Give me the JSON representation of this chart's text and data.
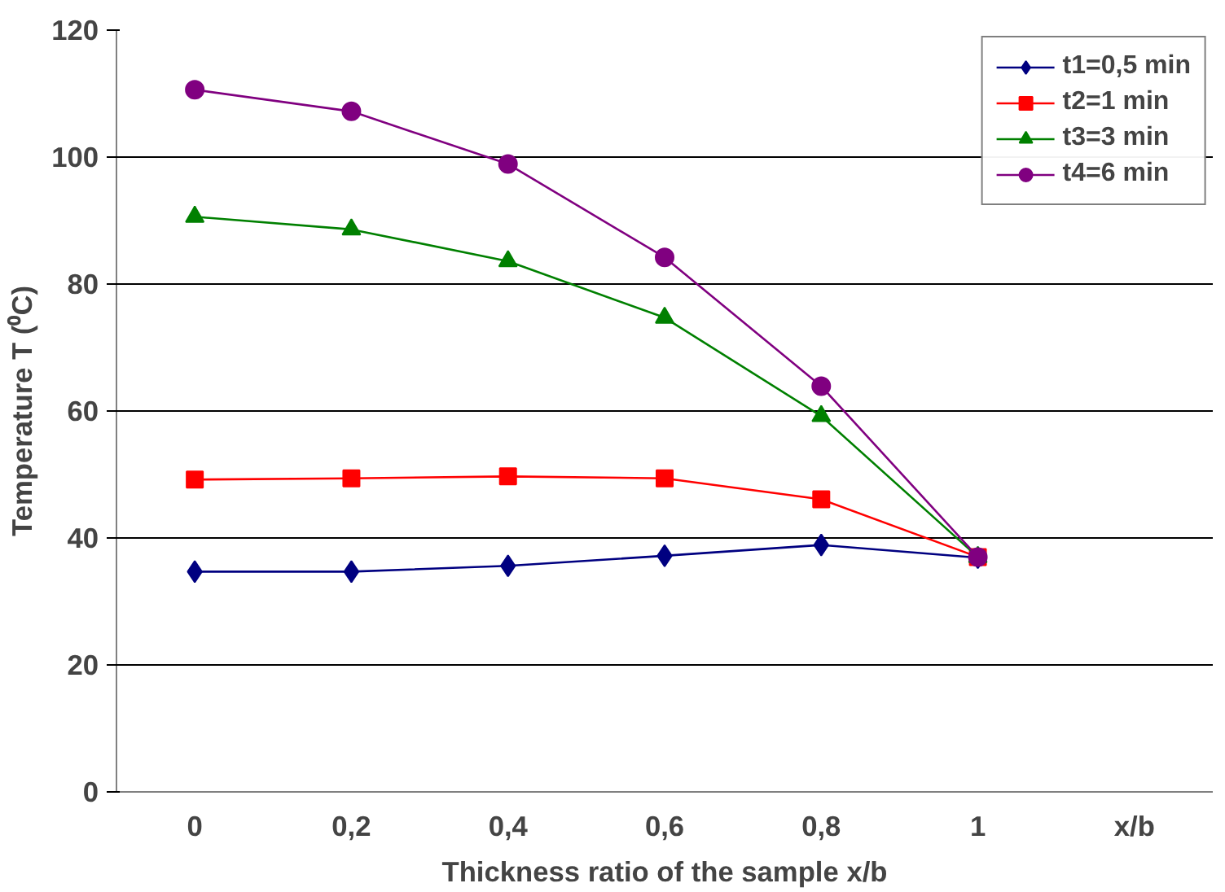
{
  "chart_data": {
    "type": "line",
    "xlabel": "Thickness ratio of the sample x/b",
    "ylabel": "Temperature T (⁰C)",
    "categories": [
      "0",
      "0,2",
      "0,4",
      "0,6",
      "0,8",
      "1",
      "x/b"
    ],
    "ylim": [
      0,
      120
    ],
    "yticks": [
      0,
      20,
      40,
      60,
      80,
      100,
      120
    ],
    "grid": "y",
    "legend": "top right",
    "line_style": "solid",
    "series": [
      {
        "name": "t1=0,5 min",
        "color": "#000080",
        "marker": "diamond",
        "values": [
          34.7,
          34.7,
          35.6,
          37.2,
          38.9,
          36.9,
          null
        ]
      },
      {
        "name": "t2=1 min",
        "color": "#ff0000",
        "marker": "square",
        "values": [
          49.2,
          49.4,
          49.7,
          49.4,
          46.1,
          37,
          null
        ]
      },
      {
        "name": "t3=3 min",
        "color": "#008000",
        "marker": "triangle",
        "values": [
          90.6,
          88.6,
          83.6,
          74.7,
          59.2,
          37,
          null
        ]
      },
      {
        "name": "t4=6 min",
        "color": "#800080",
        "marker": "circle",
        "values": [
          110.6,
          107.2,
          98.9,
          84.2,
          63.9,
          37,
          null
        ]
      }
    ]
  }
}
